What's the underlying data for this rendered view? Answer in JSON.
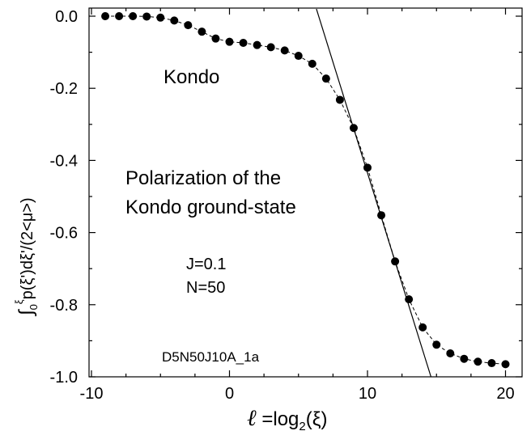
{
  "chart_data": {
    "type": "scatter",
    "title": "",
    "xlabel": "ℓ =log2(ξ)",
    "ylabel": "∫0ξp(ξ')dξ'/(2<μ>)",
    "xlim": [
      -10,
      21
    ],
    "ylim": [
      -1.0,
      0.03
    ],
    "xticks": [
      -10,
      0,
      10,
      20
    ],
    "xtick_labels": [
      "-10",
      "0",
      "10",
      "20"
    ],
    "yticks": [
      0.0,
      -0.2,
      -0.4,
      -0.6,
      -0.8,
      -1.0
    ],
    "ytick_labels": [
      "0.0",
      "-0.2",
      "-0.4",
      "-0.6",
      "-0.8",
      "-1.0"
    ],
    "grid": false,
    "series": [
      {
        "style": "filled-circles-dashed-line",
        "color": "#000000",
        "x": [
          -9,
          -8,
          -7,
          -6,
          -5,
          -4,
          -3,
          -2,
          -1,
          0,
          1,
          2,
          3,
          4,
          5,
          6,
          7,
          8,
          9,
          10,
          11,
          12,
          13,
          14,
          15,
          16,
          17,
          18,
          19,
          20
        ],
        "y": [
          0.0,
          0.0,
          0.0,
          -0.001,
          -0.004,
          -0.012,
          -0.025,
          -0.043,
          -0.062,
          -0.071,
          -0.074,
          -0.08,
          -0.086,
          -0.095,
          -0.11,
          -0.132,
          -0.173,
          -0.232,
          -0.31,
          -0.42,
          -0.552,
          -0.68,
          -0.785,
          -0.863,
          -0.911,
          -0.935,
          -0.95,
          -0.958,
          -0.962,
          -0.965
        ]
      },
      {
        "style": "solid-line",
        "color": "#000000",
        "x": [
          6.3,
          14.6
        ],
        "y": [
          0.02,
          -1.0
        ]
      }
    ],
    "annotations": {
      "kondo": "Kondo",
      "polarization_line1": "Polarization of the",
      "polarization_line2": "Kondo ground-state",
      "j_value": "J=0.1",
      "n_value": "N=50",
      "file_id": "D5N50J10A_1a"
    }
  }
}
